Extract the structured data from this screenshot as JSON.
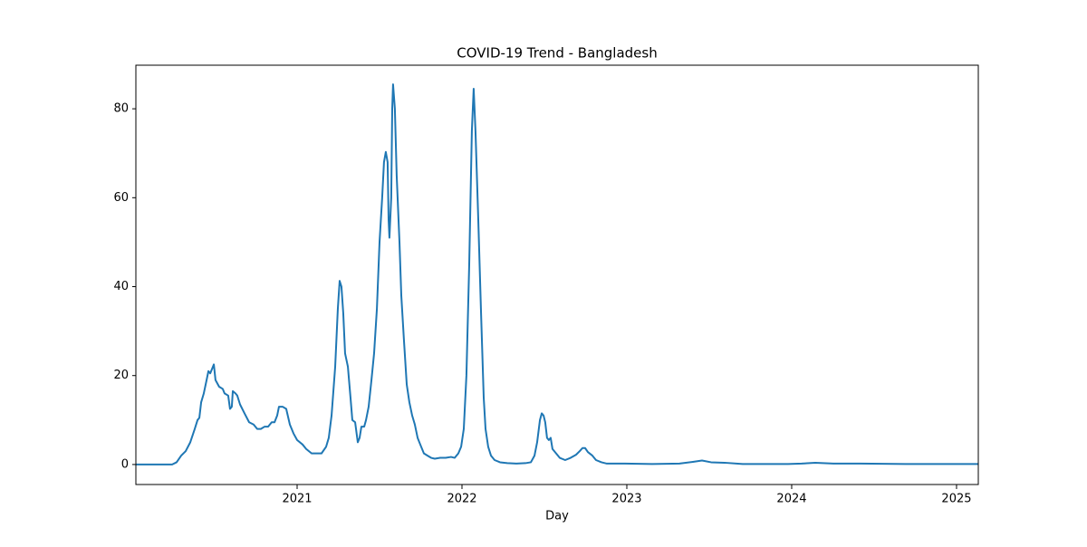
{
  "chart_data": {
    "type": "line",
    "title": "COVID-19 Trend - Bangladesh",
    "x_label": "Day",
    "x": [
      2020.022,
      2020.242,
      2020.269,
      2020.297,
      2020.324,
      2020.352,
      2020.379,
      2020.396,
      2020.407,
      2020.418,
      2020.434,
      2020.451,
      2020.462,
      2020.473,
      2020.484,
      2020.495,
      2020.505,
      2020.527,
      2020.549,
      2020.56,
      2020.582,
      2020.593,
      2020.604,
      2020.61,
      2020.626,
      2020.637,
      2020.654,
      2020.681,
      2020.709,
      2020.736,
      2020.758,
      2020.78,
      2020.802,
      2020.824,
      2020.846,
      2020.863,
      2020.879,
      2020.89,
      2020.912,
      2020.934,
      2020.956,
      2020.978,
      2021.0,
      2021.033,
      2021.055,
      2021.088,
      2021.121,
      2021.148,
      2021.176,
      2021.192,
      2021.209,
      2021.231,
      2021.247,
      2021.258,
      2021.269,
      2021.28,
      2021.291,
      2021.308,
      2021.324,
      2021.335,
      2021.352,
      2021.368,
      2021.379,
      2021.39,
      2021.407,
      2021.418,
      2021.434,
      2021.451,
      2021.467,
      2021.484,
      2021.5,
      2021.516,
      2021.527,
      2021.538,
      2021.549,
      2021.555,
      2021.56,
      2021.571,
      2021.577,
      2021.582,
      2021.593,
      2021.604,
      2021.621,
      2021.632,
      2021.648,
      2021.665,
      2021.681,
      2021.698,
      2021.714,
      2021.731,
      2021.747,
      2021.769,
      2021.791,
      2021.813,
      2021.835,
      2021.868,
      2021.901,
      2021.934,
      2021.956,
      2021.978,
      2021.995,
      2022.011,
      2022.027,
      2022.044,
      2022.06,
      2022.071,
      2022.082,
      2022.099,
      2022.115,
      2022.132,
      2022.143,
      2022.159,
      2022.176,
      2022.198,
      2022.231,
      2022.275,
      2022.33,
      2022.385,
      2022.418,
      2022.44,
      2022.456,
      2022.473,
      2022.484,
      2022.495,
      2022.505,
      2022.516,
      2022.527,
      2022.538,
      2022.549,
      2022.571,
      2022.593,
      2022.626,
      2022.659,
      2022.692,
      2022.714,
      2022.731,
      2022.747,
      2022.764,
      2022.791,
      2022.813,
      2022.846,
      2022.879,
      2022.989,
      2023.154,
      2023.319,
      2023.401,
      2023.456,
      2023.511,
      2023.593,
      2023.703,
      2023.978,
      2024.06,
      2024.143,
      2024.253,
      2024.418,
      2024.692,
      2025.132
    ],
    "series": [
      {
        "name": "Bangladesh",
        "color": "#1f77b4",
        "values": [
          0,
          0,
          0.5,
          2,
          3,
          5,
          8,
          10,
          10.5,
          14,
          16,
          19,
          21,
          20.5,
          21.5,
          22.5,
          19,
          17.5,
          17,
          16,
          15.5,
          12.5,
          13,
          16.5,
          16,
          15.5,
          13.5,
          11.5,
          9.5,
          9,
          8,
          8,
          8.5,
          8.5,
          9.5,
          9.5,
          11,
          13,
          13,
          12.5,
          9,
          7,
          5.5,
          4.5,
          3.5,
          2.5,
          2.5,
          2.5,
          4,
          6,
          11,
          22,
          35,
          41.3,
          40,
          34,
          25,
          22,
          15,
          10,
          9.5,
          5,
          6,
          8.5,
          8.5,
          10,
          13,
          19,
          25,
          35,
          50,
          60,
          68,
          70.3,
          68,
          55,
          51,
          60,
          80,
          85.5,
          80,
          65,
          50,
          38,
          28,
          18,
          14,
          11,
          9,
          6,
          4.5,
          2.5,
          2,
          1.5,
          1.3,
          1.5,
          1.5,
          1.7,
          1.5,
          2.5,
          4,
          8,
          20,
          45,
          75,
          84.5,
          75,
          55,
          35,
          15,
          8,
          4,
          2,
          1,
          0.5,
          0.3,
          0.2,
          0.3,
          0.5,
          2,
          5,
          10,
          11.5,
          11,
          9.5,
          6,
          5.5,
          6,
          3.5,
          2.5,
          1.5,
          1,
          1.5,
          2.2,
          3,
          3.7,
          3.7,
          2.8,
          2,
          1,
          0.5,
          0.2,
          0.2,
          0.1,
          0.2,
          0.6,
          0.9,
          0.5,
          0.4,
          0.1,
          0.1,
          0.2,
          0.4,
          0.2,
          0.2,
          0.1,
          0.1
        ]
      }
    ],
    "xlim": [
      2020.022,
      2025.132
    ],
    "xticks": [
      2021,
      2022,
      2023,
      2024,
      2025
    ],
    "ylim": [
      -4.5,
      89.8
    ],
    "yticks": [
      0,
      20,
      40,
      60,
      80
    ]
  }
}
